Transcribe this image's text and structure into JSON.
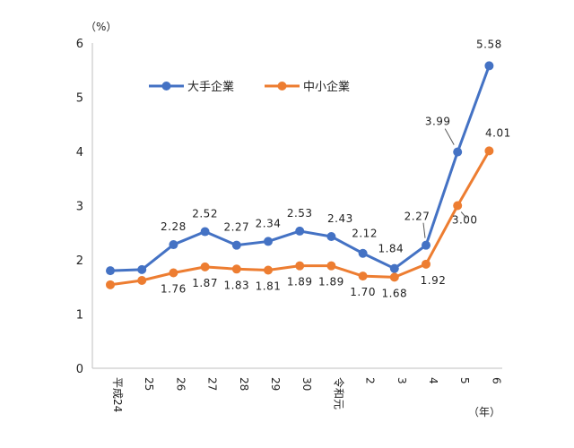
{
  "chart_data": {
    "type": "line",
    "y_unit": "（%）",
    "x_unit": "（年）",
    "ylim": [
      0,
      6
    ],
    "yticks": [
      "0",
      "1",
      "2",
      "3",
      "4",
      "5",
      "6"
    ],
    "categories": [
      "平成24",
      "25",
      "26",
      "27",
      "28",
      "29",
      "30",
      "令和元",
      "2",
      "3",
      "4",
      "5",
      "6"
    ],
    "grid": false,
    "legend_position": "top-left",
    "series": [
      {
        "name": "大手企業",
        "color": "#4472C4",
        "values": [
          1.8,
          1.82,
          2.28,
          2.52,
          2.27,
          2.34,
          2.53,
          2.43,
          2.12,
          1.84,
          2.27,
          3.99,
          5.58
        ],
        "labels": [
          "",
          "",
          "2.28",
          "2.52",
          "2.27",
          "2.34",
          "2.53",
          "2.43",
          "2.12",
          "1.84",
          "2.27",
          "3.99",
          "5.58"
        ]
      },
      {
        "name": "中小企業",
        "color": "#ED7D31",
        "values": [
          1.54,
          1.62,
          1.76,
          1.87,
          1.83,
          1.81,
          1.89,
          1.89,
          1.7,
          1.68,
          1.92,
          3.0,
          4.01
        ],
        "labels": [
          "",
          "",
          "1.76",
          "1.87",
          "1.83",
          "1.81",
          "1.89",
          "1.89",
          "1.70",
          "1.68",
          "1.92",
          "3.00",
          "4.01"
        ]
      }
    ]
  }
}
